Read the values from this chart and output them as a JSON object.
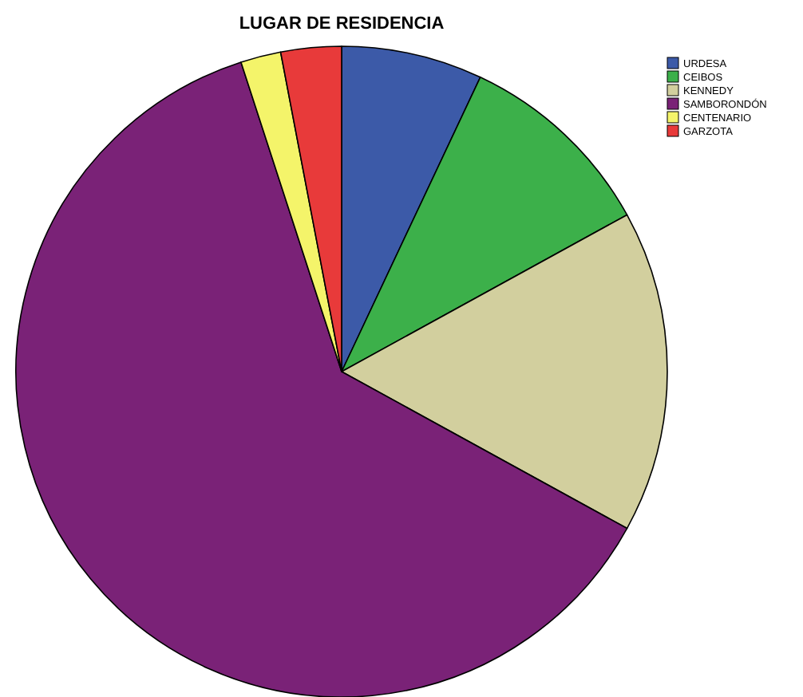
{
  "chart_data": {
    "type": "pie",
    "title": "LUGAR DE RESIDENCIA",
    "categories": [
      "URDESA",
      "CEIBOS",
      "KENNEDY",
      "SAMBORONDÓN",
      "CENTENARIO",
      "GARZOTA"
    ],
    "values": [
      7,
      10,
      16,
      62,
      2,
      3
    ],
    "colors": [
      "#3c5aa8",
      "#3cb04a",
      "#d2cf9e",
      "#7a2277",
      "#f4f46a",
      "#e83a3a"
    ],
    "legend": "top right"
  }
}
